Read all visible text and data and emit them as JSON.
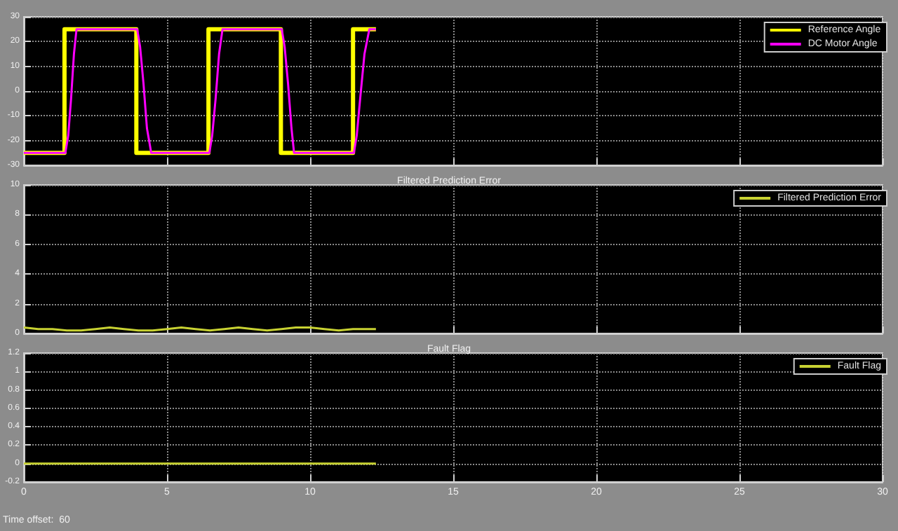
{
  "chart_data": [
    {
      "type": "line",
      "xlim": [
        0,
        30
      ],
      "xticks": [
        0,
        5,
        10,
        15,
        20,
        25,
        30
      ],
      "ylim": [
        -30,
        30
      ],
      "yticks": [
        -30,
        -20,
        -10,
        0,
        10,
        20,
        30
      ],
      "grid": true,
      "legend": "top right",
      "marker": "none",
      "tick_labels": "y",
      "series": [
        {
          "name": "Reference Angle",
          "color": "#ffff00",
          "x": [
            0,
            1.42,
            1.42,
            3.93,
            3.93,
            6.45,
            6.45,
            8.98,
            8.98,
            11.5,
            11.5,
            12.3
          ],
          "values": [
            -25,
            -25,
            25,
            25,
            -25,
            -25,
            25,
            25,
            -25,
            -25,
            25,
            25
          ]
        },
        {
          "name": "DC Motor Angle",
          "color": "#ff00ff",
          "x": [
            0,
            1.45,
            1.55,
            1.65,
            1.75,
            1.84,
            3.96,
            4.06,
            4.18,
            4.3,
            4.45,
            6.48,
            6.58,
            6.7,
            6.82,
            6.94,
            9.01,
            9.11,
            9.23,
            9.35,
            9.44,
            11.53,
            11.63,
            11.75,
            11.9,
            12.07,
            12.3
          ],
          "values": [
            -25,
            -25,
            -18,
            -3,
            15,
            25,
            25,
            18,
            3,
            -15,
            -25,
            -25,
            -18,
            -3,
            15,
            25,
            25,
            18,
            3,
            -15,
            -25,
            -25,
            -18,
            -3,
            15,
            25,
            25
          ]
        }
      ]
    },
    {
      "type": "line",
      "title": "Filtered Prediction Error",
      "xlim": [
        0,
        30
      ],
      "xticks": [
        0,
        5,
        10,
        15,
        20,
        25,
        30
      ],
      "ylim": [
        0,
        10
      ],
      "yticks": [
        0,
        2,
        4,
        6,
        8,
        10
      ],
      "grid": true,
      "legend": "top right",
      "marker": "none",
      "tick_labels": "y",
      "series": [
        {
          "name": "Filtered Prediction Error",
          "color": "#c8d232",
          "x": [
            0,
            0.5,
            1,
            1.5,
            2,
            2.5,
            3,
            3.5,
            4,
            4.5,
            5,
            5.5,
            6,
            6.5,
            7,
            7.5,
            8,
            8.5,
            9,
            9.5,
            10,
            10.5,
            11,
            11.5,
            12.3
          ],
          "values": [
            0.4,
            0.3,
            0.3,
            0.2,
            0.2,
            0.3,
            0.4,
            0.3,
            0.2,
            0.2,
            0.3,
            0.4,
            0.3,
            0.2,
            0.3,
            0.4,
            0.3,
            0.2,
            0.3,
            0.4,
            0.4,
            0.3,
            0.2,
            0.3,
            0.3
          ]
        }
      ]
    },
    {
      "type": "line",
      "title": "Fault Flag",
      "xlim": [
        0,
        30
      ],
      "xticks": [
        0,
        5,
        10,
        15,
        20,
        25,
        30
      ],
      "ylim": [
        -0.2,
        1.2
      ],
      "yticks": [
        -0.2,
        0,
        0.2,
        0.4,
        0.6,
        0.8,
        1,
        1.2
      ],
      "grid": true,
      "legend": "top right",
      "marker": "none",
      "annotations": [
        "Time offset:  60"
      ],
      "series": [
        {
          "name": "Fault Flag",
          "color": "#c8d232",
          "x": [
            0,
            12.3
          ],
          "values": [
            0,
            0
          ]
        }
      ]
    }
  ]
}
